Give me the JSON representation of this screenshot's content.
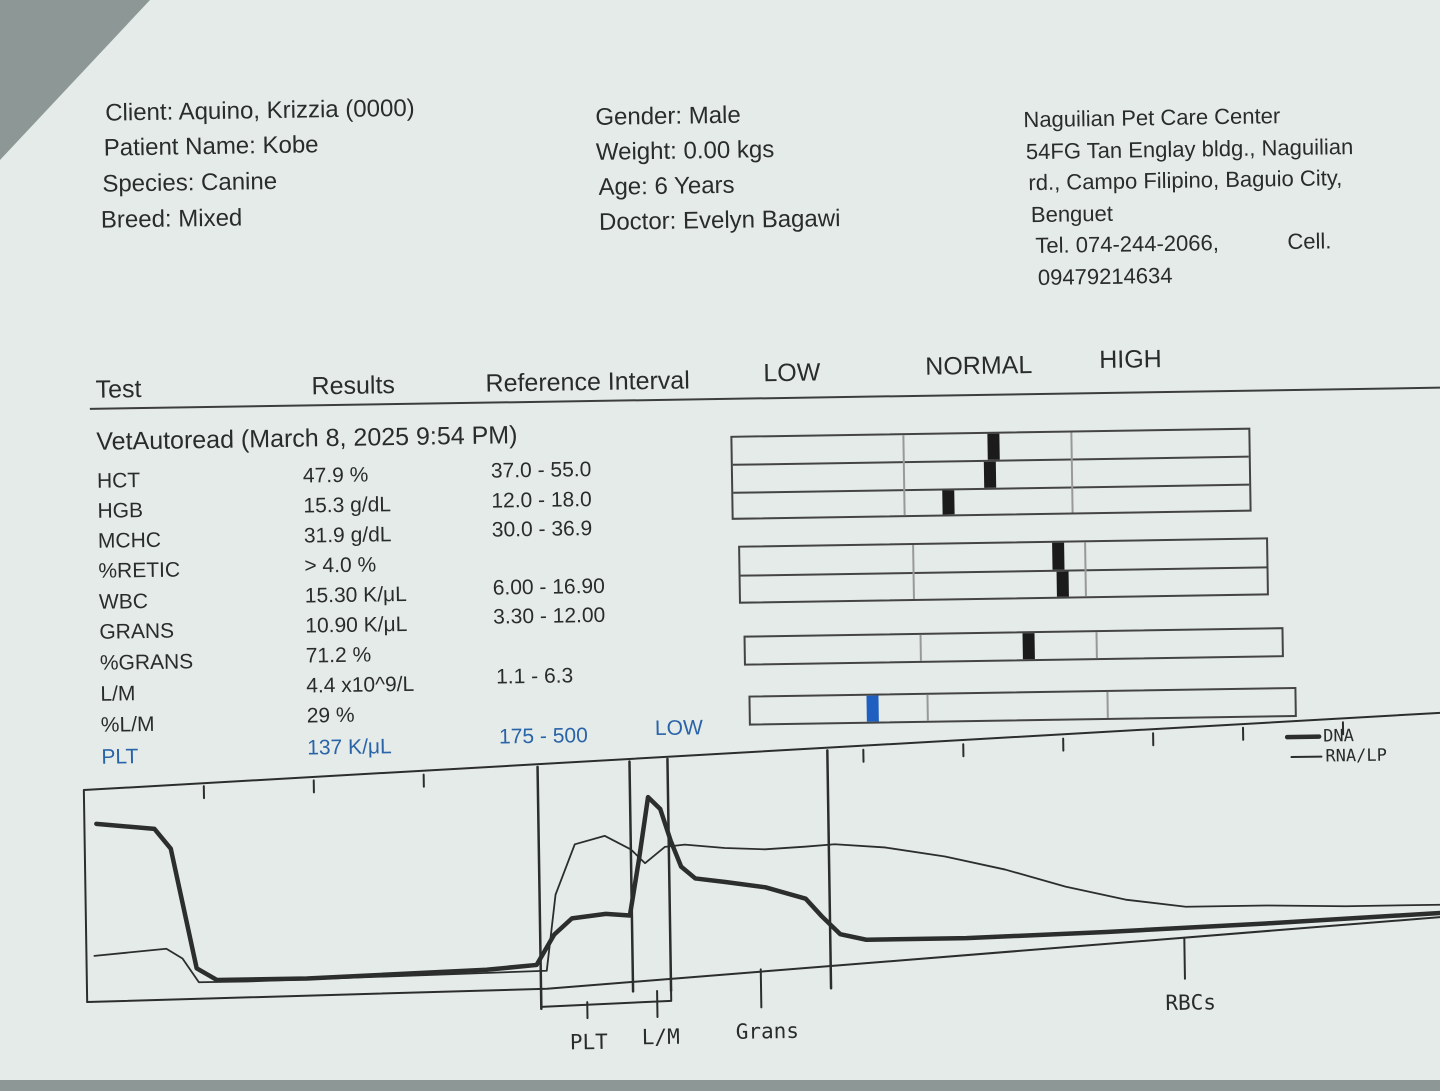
{
  "client": {
    "client": "Client: Aquino, Krizzia (0000)",
    "patient_name": "Patient Name: Kobe",
    "species": "Species: Canine",
    "breed": "Breed: Mixed"
  },
  "patient": {
    "gender": "Gender: Male",
    "weight": "Weight: 0.00 kgs",
    "age": "Age: 6 Years",
    "doctor": "Doctor: Evelyn Bagawi"
  },
  "clinic": {
    "name": "Naguilian Pet Care Center",
    "address_1": "54FG Tan Englay bldg., Naguilian",
    "address_2": "rd., Campo Filipino, Baguio City,",
    "address_3": "Benguet",
    "tel": "Tel. 074-244-2066,",
    "cell_label": "Cell.",
    "cell": "09479214634"
  },
  "columns": {
    "test": "Test",
    "results": "Results",
    "reference": "Reference Interval",
    "low": "LOW",
    "normal": "NORMAL",
    "high": "HIGH"
  },
  "run_title": "VetAutoread (March 8, 2025 9:54 PM)",
  "rows": [
    {
      "test": "HCT",
      "result": "47.9 %",
      "range": "37.0 - 55.0",
      "flag": "",
      "level": 0.54
    },
    {
      "test": "HGB",
      "result": "15.3 g/dL",
      "range": "12.0 - 18.0",
      "flag": "",
      "level": 0.52
    },
    {
      "test": "MCHC",
      "result": "31.9 g/dL",
      "range": "30.0 - 36.9",
      "flag": "",
      "level": 0.27
    },
    {
      "test": "%RETIC",
      "result": "> 4.0 %",
      "range": "",
      "flag": "",
      "level": null
    },
    {
      "test": "WBC",
      "result": "15.30 K/μL",
      "range": "6.00 - 16.90",
      "flag": "",
      "level": 0.85
    },
    {
      "test": "GRANS",
      "result": "10.90 K/μL",
      "range": "3.30 - 12.00",
      "flag": "",
      "level": 0.87
    },
    {
      "test": "%GRANS",
      "result": "71.2 %",
      "range": "",
      "flag": "",
      "level": 0.62
    },
    {
      "test": "L/M",
      "result": "4.4 x10^9/L",
      "range": "1.1 - 6.3",
      "flag": "",
      "level": null
    },
    {
      "test": "%L/M",
      "result": "29 %",
      "range": "",
      "flag": "",
      "level": null
    },
    {
      "test": "PLT",
      "result": "137 K/μL",
      "range": "175 - 500",
      "flag": "LOW",
      "level": -0.3
    }
  ],
  "histogram": {
    "labels": {
      "plt": "PLT",
      "lm": "L/M",
      "grans": "Grans",
      "rbcs": "RBCs"
    },
    "legend": {
      "dna": "DNA",
      "rna": "RNA/LP"
    },
    "colors": {
      "ink": "#2a2c2c",
      "blue": "#2a64a8",
      "marker": "#1b1b1b",
      "low_marker": "#1f5fbf"
    }
  }
}
